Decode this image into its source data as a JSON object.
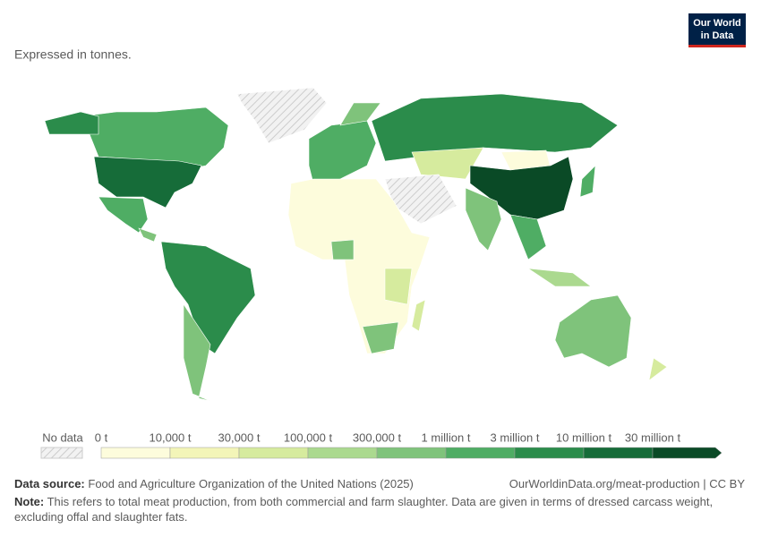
{
  "subtitle": "Expressed in tonnes.",
  "logo": {
    "line1": "Our World",
    "line2": "in Data"
  },
  "legend": {
    "no_data": "No data",
    "labels": [
      "0 t",
      "10,000 t",
      "30,000 t",
      "100,000 t",
      "300,000 t",
      "1 million t",
      "3 million t",
      "10 million t",
      "30 million t"
    ],
    "colors": [
      "#fdfcdc",
      "#f3f5b8",
      "#d6eb9e",
      "#abd98f",
      "#7fc37b",
      "#4fad64",
      "#2b8c4b",
      "#166c39",
      "#0a4a26"
    ]
  },
  "footer": {
    "source_label": "Data source:",
    "source": "Food and Agriculture Organization of the United Nations (2025)",
    "url": "OurWorldinData.org/meat-production | CC BY",
    "note_label": "Note:",
    "note": "This refers to total meat production, from both commercial and farm slaughter. Data are given in terms of dressed carcass weight, excluding offal and slaughter fats."
  }
}
